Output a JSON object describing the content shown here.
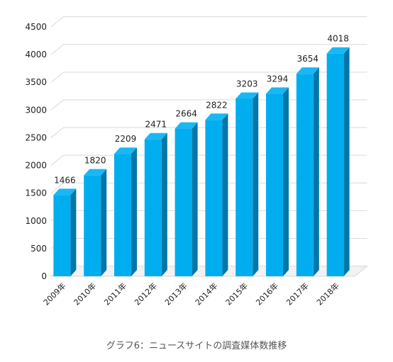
{
  "caption": "グラフ6：ニュースサイトの調査媒体数推移",
  "colors": {
    "bar_front": "#00AEEF",
    "bar_side": "#0077A8",
    "bar_top": "#19B8F5",
    "grid": "#D9D9D9",
    "floor": "#D9D9D9"
  },
  "chart_data": {
    "type": "bar",
    "categories": [
      "2009年",
      "2010年",
      "2011年",
      "2012年",
      "2013年",
      "2014年",
      "2015年",
      "2016年",
      "2017年",
      "2018年"
    ],
    "values": [
      1466,
      1820,
      2209,
      2471,
      2664,
      2822,
      3203,
      3294,
      3654,
      4018
    ],
    "data_labels": [
      "1466",
      "1820",
      "2209",
      "2471",
      "2664",
      "2822",
      "3203",
      "3294",
      "3654",
      "4018"
    ],
    "ylim": [
      0,
      4500
    ],
    "yticks": [
      "0",
      "500",
      "1000",
      "1500",
      "2000",
      "2500",
      "3000",
      "3500",
      "4000",
      "4500"
    ],
    "grid": true,
    "style": "3d-column"
  }
}
